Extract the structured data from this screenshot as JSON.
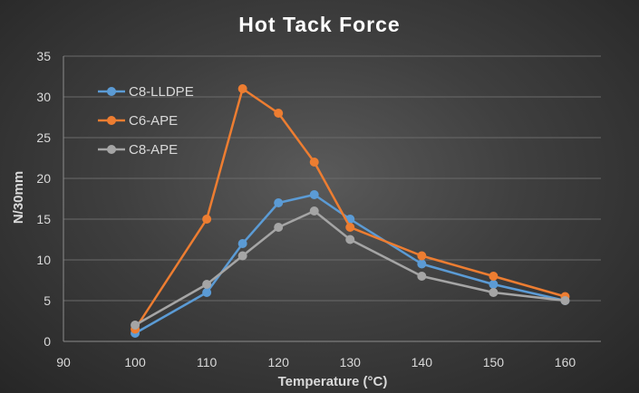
{
  "chart_data": {
    "type": "line",
    "title": "Hot Tack Force",
    "xlabel": "Temperature (°C)",
    "ylabel": "N/30mm",
    "x": [
      100,
      110,
      115,
      120,
      125,
      130,
      140,
      150,
      160
    ],
    "xlim": [
      90,
      165
    ],
    "x_ticks": [
      90,
      100,
      110,
      120,
      130,
      140,
      150,
      160
    ],
    "ylim": [
      0,
      35
    ],
    "y_ticks": [
      0,
      5,
      10,
      15,
      20,
      25,
      30,
      35
    ],
    "grid": true,
    "legend_position": "top-left",
    "series": [
      {
        "name": "C8-LLDPE",
        "color": "#5b9bd5",
        "values": [
          1,
          6,
          12,
          17,
          18,
          15,
          9.5,
          7,
          5
        ]
      },
      {
        "name": "C6-APE",
        "color": "#ed7d31",
        "values": [
          1.5,
          15,
          31,
          28,
          22,
          14,
          10.5,
          8,
          5.5
        ]
      },
      {
        "name": "C8-APE",
        "color": "#a5a5a5",
        "values": [
          2,
          7,
          10.5,
          14,
          16,
          12.5,
          8,
          6,
          5
        ]
      }
    ]
  }
}
